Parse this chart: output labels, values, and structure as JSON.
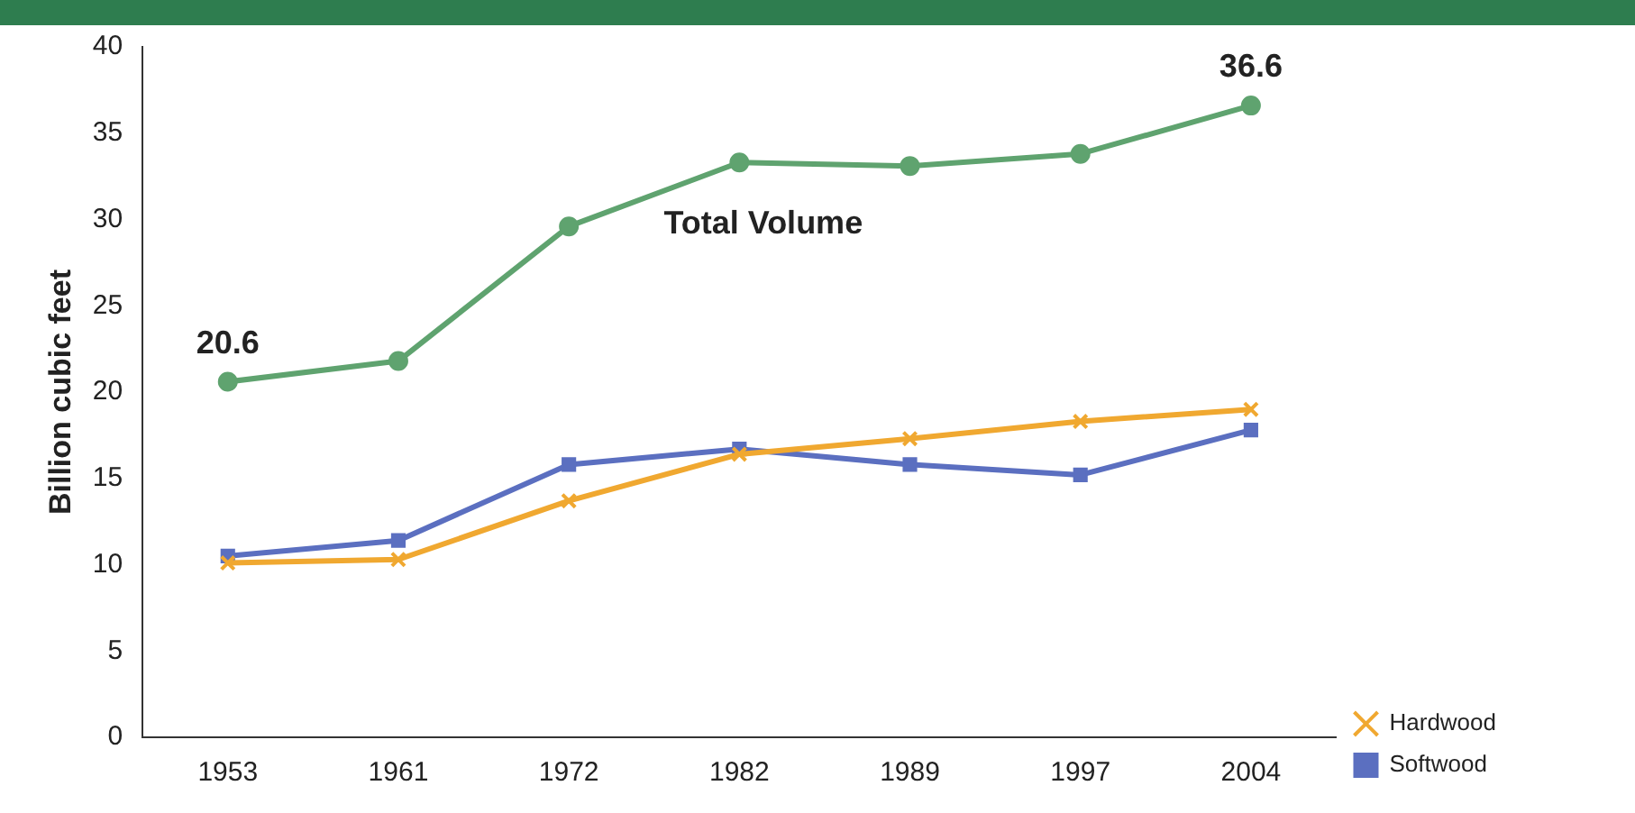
{
  "chart_data": {
    "type": "line",
    "ylabel": "Billion cubic feet",
    "categories": [
      "1953",
      "1961",
      "1972",
      "1982",
      "1989",
      "1997",
      "2004"
    ],
    "series": [
      {
        "color": "#5fa36f",
        "marker": "circle",
        "values": [
          20.6,
          21.8,
          29.6,
          33.3,
          33.1,
          33.8,
          36.6
        ],
        "value_labels": [
          "20.6",
          null,
          null,
          null,
          null,
          null,
          "36.6"
        ]
      },
      {
        "name": "Softwood",
        "color": "#5b6fc0",
        "marker": "square",
        "values": [
          10.5,
          11.4,
          15.8,
          16.7,
          15.8,
          15.2,
          17.8
        ]
      },
      {
        "name": "Hardwood",
        "color": "#f0a830",
        "marker": "cross",
        "values": [
          10.1,
          10.3,
          13.7,
          16.4,
          17.3,
          18.3,
          19.0
        ]
      }
    ],
    "annotations": [
      "Total Volume"
    ],
    "ylim": [
      0,
      40
    ],
    "yticks": [
      0,
      5,
      10,
      15,
      20,
      25,
      30,
      35,
      40
    ],
    "grid": false,
    "legend": "bottom right"
  }
}
